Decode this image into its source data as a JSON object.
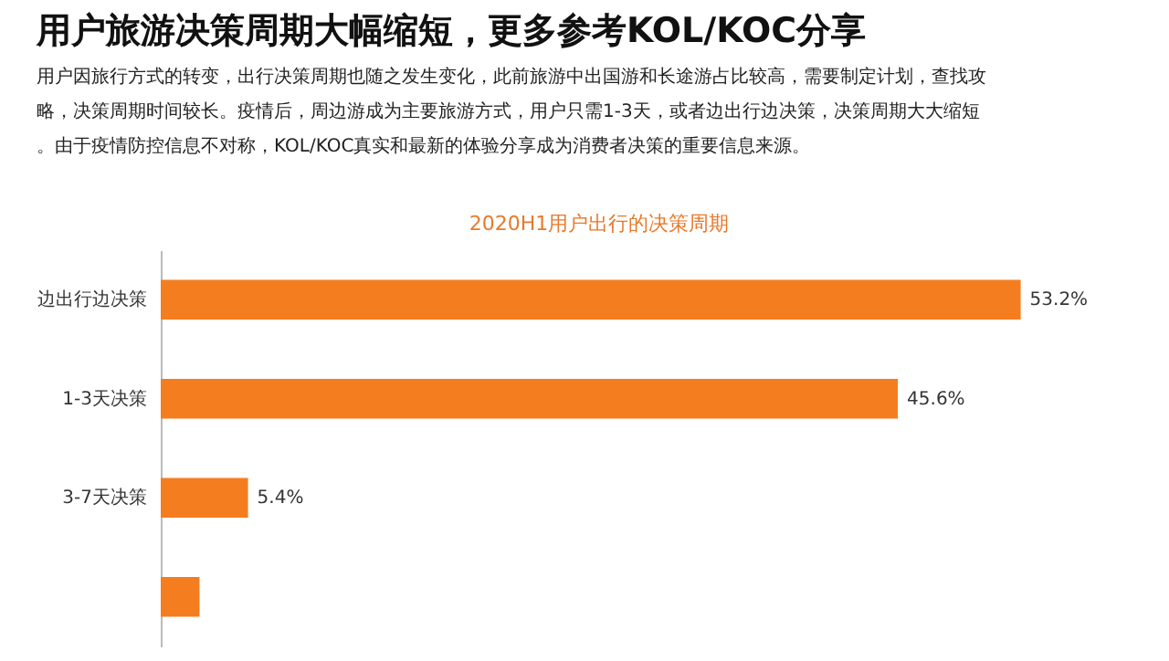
{
  "chart_data": {
    "type": "bar",
    "orientation": "horizontal",
    "title": "用户旅游决策周期大幅缩短，更多参考KOL/KOC分享",
    "subtitle": "用户因旅行方式的转变，出行决策周期也随之发生变化，此前旅游中出国游和长途游占比较高，需要制定计划，查找攻略，决策周期时间较长。疫情后，周边游成为主要旅游方式，用户只需1-3天，或者边出行边决策，决策周期大大缩短。由于疫情防控信息不对称，KOL/KOC真实和最新的体验分享成为消费者决策的重要信息来源。",
    "annotations": [
      "2020H1用户出行的决策周期"
    ],
    "categories": [
      "边出行边决策",
      "1-3天决策",
      "3-7天决策",
      null
    ],
    "values": [
      53.2,
      45.6,
      5.4,
      2.4
    ],
    "value_labels": [
      "53.2%",
      "45.6%",
      "5.4%",
      null
    ],
    "colors": [
      "#f47d20",
      "#f47d20",
      "#f47d20",
      "#f47d20"
    ]
  }
}
